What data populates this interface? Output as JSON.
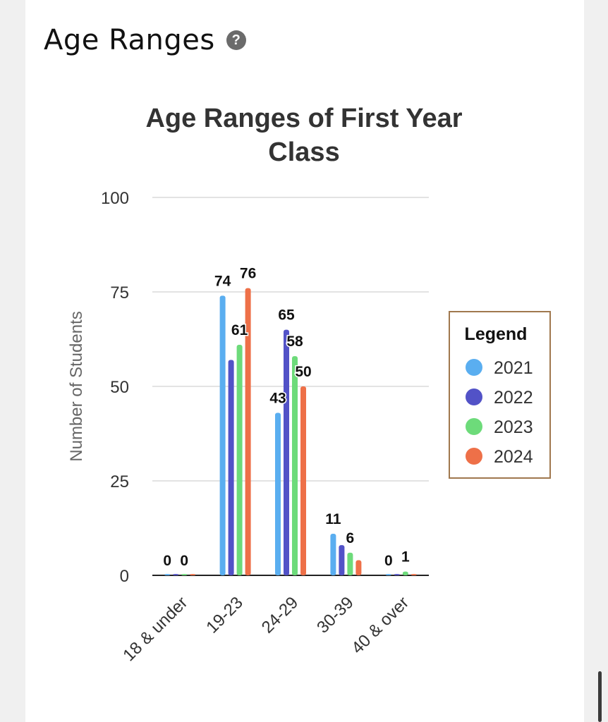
{
  "section": {
    "title": "Age Ranges",
    "help_icon": "question-circle-icon",
    "help_glyph": "?"
  },
  "chart_data": {
    "type": "bar",
    "title_lines": [
      "Age Ranges of First Year",
      "Class"
    ],
    "xlabel": "",
    "ylabel": "Number of Students",
    "ylim": [
      0,
      100
    ],
    "yticks": [
      0,
      25,
      50,
      75,
      100
    ],
    "grid": true,
    "categories": [
      "18 & under",
      "19-23",
      "24-29",
      "30-39",
      "40 & over"
    ],
    "series": [
      {
        "name": "2021",
        "color": "#5aaef0",
        "values": [
          0,
          74,
          43,
          11,
          0
        ]
      },
      {
        "name": "2022",
        "color": "#5252c7",
        "values": [
          0,
          57,
          65,
          8,
          0
        ]
      },
      {
        "name": "2023",
        "color": "#6ddb7a",
        "values": [
          0,
          61,
          58,
          6,
          1
        ]
      },
      {
        "name": "2024",
        "color": "#ee7048",
        "values": [
          0,
          76,
          50,
          4,
          0
        ]
      }
    ],
    "data_labels": [
      {
        "category": 0,
        "series": 0,
        "text": "0"
      },
      {
        "category": 0,
        "series": 2,
        "text": "0"
      },
      {
        "category": 1,
        "series": 0,
        "text": "74"
      },
      {
        "category": 1,
        "series": 3,
        "text": "76"
      },
      {
        "category": 1,
        "series": 2,
        "text": "61"
      },
      {
        "category": 2,
        "series": 1,
        "text": "65"
      },
      {
        "category": 2,
        "series": 2,
        "text": "58"
      },
      {
        "category": 2,
        "series": 3,
        "text": "50"
      },
      {
        "category": 2,
        "series": 0,
        "text": "43"
      },
      {
        "category": 3,
        "series": 0,
        "text": "11"
      },
      {
        "category": 3,
        "series": 2,
        "text": "6"
      },
      {
        "category": 4,
        "series": 0,
        "text": "0"
      },
      {
        "category": 4,
        "series": 2,
        "text": "1"
      }
    ],
    "legend": {
      "title": "Legend",
      "placement": "right",
      "border_color": "#a0784e"
    }
  }
}
